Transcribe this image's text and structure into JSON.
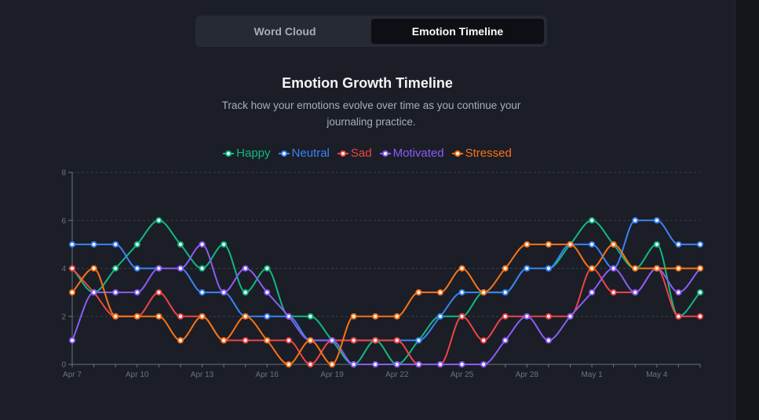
{
  "tabs": [
    {
      "label": "Word Cloud",
      "active": false
    },
    {
      "label": "Emotion Timeline",
      "active": true
    }
  ],
  "section": {
    "title": "Emotion Growth Timeline",
    "subtitle": "Track how your emotions evolve over time as you continue your journaling practice."
  },
  "chart_data": {
    "type": "line",
    "title": "",
    "xlabel": "",
    "ylabel": "",
    "ylim": [
      0,
      8
    ],
    "yticks": [
      0,
      2,
      4,
      6,
      8
    ],
    "grid": true,
    "legend_position": "top",
    "x": [
      "Apr 7",
      "Apr 8",
      "Apr 9",
      "Apr 10",
      "Apr 11",
      "Apr 12",
      "Apr 13",
      "Apr 14",
      "Apr 15",
      "Apr 16",
      "Apr 17",
      "Apr 18",
      "Apr 19",
      "Apr 20",
      "Apr 21",
      "Apr 22",
      "Apr 23",
      "Apr 24",
      "Apr 25",
      "Apr 26",
      "Apr 27",
      "Apr 28",
      "Apr 29",
      "Apr 30",
      "May 1",
      "May 2",
      "May 3",
      "May 4",
      "May 5",
      "May 6"
    ],
    "xtick_labels": [
      "Apr 7",
      "Apr 10",
      "Apr 13",
      "Apr 16",
      "Apr 19",
      "Apr 22",
      "Apr 25",
      "Apr 28",
      "May 1",
      "May 4"
    ],
    "series": [
      {
        "name": "Happy",
        "color": "#10b981",
        "values": [
          4,
          3,
          4,
          5,
          6,
          5,
          4,
          5,
          3,
          4,
          2,
          2,
          1,
          0,
          1,
          0,
          1,
          2,
          2,
          3,
          3,
          4,
          4,
          5,
          6,
          5,
          4,
          5,
          2,
          3
        ]
      },
      {
        "name": "Neutral",
        "color": "#3b82f6",
        "values": [
          5,
          5,
          5,
          4,
          4,
          4,
          3,
          3,
          2,
          2,
          2,
          1,
          1,
          1,
          1,
          1,
          1,
          2,
          3,
          3,
          3,
          4,
          4,
          5,
          5,
          4,
          6,
          6,
          5,
          5
        ]
      },
      {
        "name": "Sad",
        "color": "#ef4444",
        "values": [
          4,
          3,
          2,
          2,
          3,
          2,
          2,
          1,
          1,
          1,
          1,
          0,
          1,
          1,
          1,
          1,
          0,
          0,
          2,
          1,
          2,
          2,
          2,
          2,
          4,
          3,
          3,
          4,
          2,
          2
        ]
      },
      {
        "name": "Motivated",
        "color": "#8b5cf6",
        "values": [
          1,
          3,
          3,
          3,
          4,
          4,
          5,
          3,
          4,
          3,
          2,
          1,
          1,
          0,
          0,
          0,
          0,
          0,
          0,
          0,
          1,
          2,
          1,
          2,
          3,
          4,
          3,
          4,
          3,
          4
        ]
      },
      {
        "name": "Stressed",
        "color": "#f97316",
        "values": [
          3,
          4,
          2,
          2,
          2,
          1,
          2,
          1,
          2,
          1,
          0,
          1,
          0,
          2,
          2,
          2,
          3,
          3,
          4,
          3,
          4,
          5,
          5,
          5,
          4,
          5,
          4,
          4,
          4,
          4
        ]
      }
    ]
  }
}
